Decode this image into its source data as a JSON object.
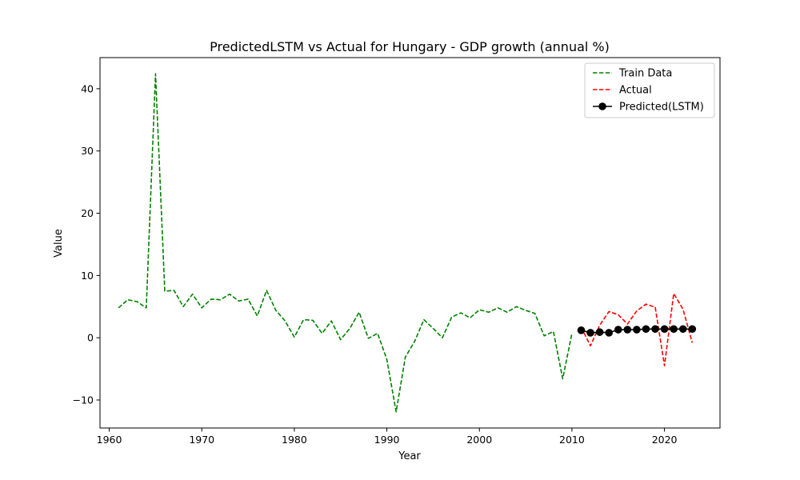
{
  "chart_data": {
    "type": "line",
    "title": "PredictedLSTM vs Actual for Hungary - GDP growth (annual %)",
    "xlabel": "Year",
    "ylabel": "Value",
    "xlim": [
      1959,
      2026
    ],
    "ylim": [
      -14.5,
      45
    ],
    "xticks": [
      1960,
      1970,
      1980,
      1990,
      2000,
      2010,
      2020
    ],
    "yticks": [
      -10,
      0,
      10,
      20,
      30,
      40
    ],
    "ytick_labels": [
      "−10",
      "0",
      "10",
      "20",
      "30",
      "40"
    ],
    "grid": false,
    "legend_position": "top-right",
    "series": [
      {
        "name": "Train Data",
        "color": "#008000",
        "style": "dashed",
        "x": [
          1961,
          1962,
          1963,
          1964,
          1965,
          1966,
          1967,
          1968,
          1969,
          1970,
          1971,
          1972,
          1973,
          1974,
          1975,
          1976,
          1977,
          1978,
          1979,
          1980,
          1981,
          1982,
          1983,
          1984,
          1985,
          1986,
          1987,
          1988,
          1989,
          1990,
          1991,
          1992,
          1993,
          1994,
          1995,
          1996,
          1997,
          1998,
          1999,
          2000,
          2001,
          2002,
          2003,
          2004,
          2005,
          2006,
          2007,
          2008,
          2009,
          2010
        ],
        "values": [
          4.8,
          6.1,
          5.8,
          4.8,
          42.4,
          7.5,
          7.6,
          5.0,
          7.0,
          4.8,
          6.2,
          6.1,
          7.0,
          5.9,
          6.2,
          3.5,
          7.6,
          4.4,
          2.7,
          0.1,
          2.9,
          2.8,
          0.7,
          2.7,
          -0.3,
          1.5,
          4.1,
          -0.1,
          0.7,
          -3.5,
          -11.9,
          -3.1,
          -0.6,
          2.9,
          1.5,
          0.0,
          3.3,
          4.0,
          3.2,
          4.5,
          4.1,
          4.8,
          4.1,
          5.0,
          4.4,
          3.9,
          0.3,
          1.0,
          -6.6,
          0.7
        ]
      },
      {
        "name": "Actual",
        "color": "#ff0000",
        "style": "dashed",
        "x": [
          2011,
          2012,
          2013,
          2014,
          2015,
          2016,
          2017,
          2018,
          2019,
          2020,
          2021,
          2022,
          2023
        ],
        "values": [
          1.7,
          -1.3,
          2.0,
          4.2,
          3.7,
          2.2,
          4.3,
          5.4,
          4.9,
          -4.5,
          7.1,
          4.6,
          -0.8
        ]
      },
      {
        "name": "Predicted(LSTM)",
        "color": "#000000",
        "style": "solid-markers",
        "x": [
          2011,
          2012,
          2013,
          2014,
          2015,
          2016,
          2017,
          2018,
          2019,
          2020,
          2021,
          2022,
          2023
        ],
        "values": [
          1.2,
          0.8,
          0.9,
          0.8,
          1.3,
          1.3,
          1.3,
          1.4,
          1.4,
          1.4,
          1.4,
          1.4,
          1.4
        ]
      }
    ]
  }
}
